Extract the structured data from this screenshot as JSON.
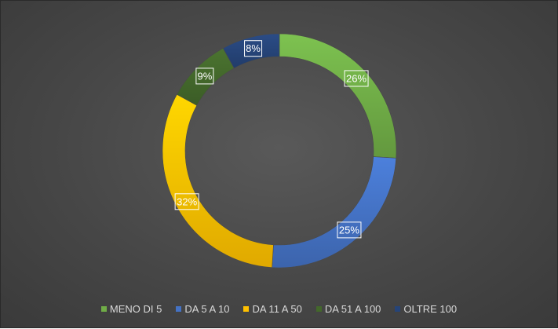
{
  "chart_data": {
    "type": "donut",
    "series": [
      {
        "name": "MENO DI 5",
        "value": 26,
        "label": "26%",
        "color": "#70ad47"
      },
      {
        "name": "DA 5 A 10",
        "value": 25,
        "label": "25%",
        "color": "#4472c4"
      },
      {
        "name": "DA 11 A 50",
        "value": 32,
        "label": "32%",
        "color": "#ffc000"
      },
      {
        "name": "DA 51 A 100",
        "value": 9,
        "label": "9%",
        "color": "#43682b"
      },
      {
        "name": "OLTRE 100",
        "value": 8,
        "label": "8%",
        "color": "#264478"
      }
    ],
    "legend_position": "bottom",
    "start_angle_deg": 0,
    "direction": "clockwise"
  }
}
